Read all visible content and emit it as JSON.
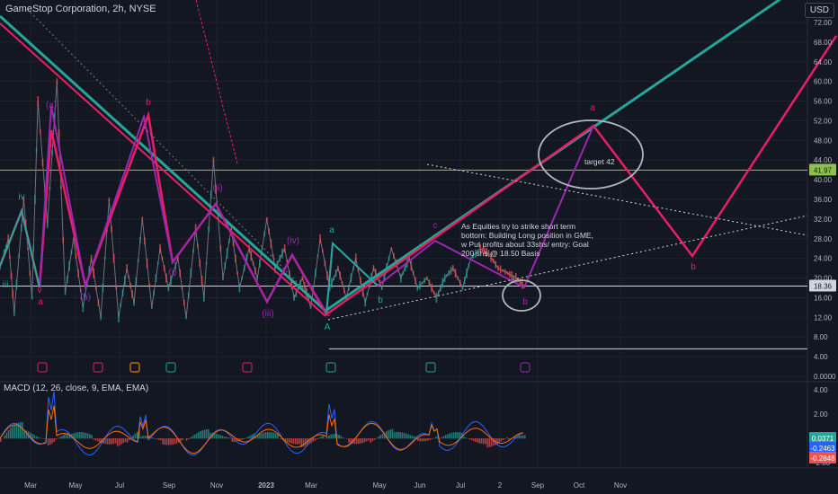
{
  "header": {
    "title": "GameStop Corporation, 2h, NYSE",
    "currency": "USD"
  },
  "annotations": {
    "note": "As Equities try to strike short term bottom: Building Long position in GME, w Put profits about 33shs/ entry: Goal 200 shs @ 18.50 Basis",
    "target": "target 42"
  },
  "price_badges": {
    "level": "41.97",
    "last": "18.36"
  },
  "wave_labels": [
    {
      "text": "iii",
      "color": "#26a69a"
    },
    {
      "text": "iv",
      "color": "#26a69a"
    },
    {
      "text": "v",
      "color": "#e91e63"
    },
    {
      "text": "a",
      "color": "#e91e63"
    },
    {
      "text": "(a)",
      "color": "#9c27b0"
    },
    {
      "text": "(b)",
      "color": "#9c27b0"
    },
    {
      "text": "b",
      "color": "#e91e63"
    },
    {
      "text": "(i)",
      "color": "#9c27b0"
    },
    {
      "text": "(ii)",
      "color": "#9c27b0"
    },
    {
      "text": "(iii)",
      "color": "#9c27b0"
    },
    {
      "text": "(iv)",
      "color": "#9c27b0"
    },
    {
      "text": "c",
      "color": "#e91e63"
    },
    {
      "text": "A",
      "color": "#26a69a"
    },
    {
      "text": "a",
      "color": "#26a69a"
    },
    {
      "text": "b",
      "color": "#26a69a"
    },
    {
      "text": "c",
      "color": "#9c27b0"
    },
    {
      "text": "b",
      "color": "#9c27b0"
    },
    {
      "text": "a",
      "color": "#e91e63"
    },
    {
      "text": "b",
      "color": "#e91e63"
    }
  ],
  "chart_data": [
    {
      "type": "line",
      "title": "GameStop Corporation, 2h, NYSE",
      "currency": "USD",
      "x_ticks": [
        "Mar",
        "May",
        "Jul",
        "Sep",
        "Nov",
        "2023",
        "Mar",
        "May",
        "Jun",
        "Jul",
        "2",
        "Sep",
        "Oct",
        "Nov"
      ],
      "y_ticks": [
        72.0,
        68.0,
        64.0,
        60.0,
        56.0,
        52.0,
        48.0,
        44.0,
        40.0,
        36.0,
        32.0,
        28.0,
        24.0,
        20.0,
        16.0,
        12.0,
        8.0,
        4.0,
        0.0
      ],
      "ylim": [
        0,
        75
      ],
      "scale": "linear",
      "horizontal_levels": [
        {
          "value": 41.97,
          "color": "#ff9800"
        },
        {
          "value": 18.36,
          "color": "#d1d4dc"
        },
        {
          "value": 5.6,
          "color": "#d1d4dc"
        }
      ],
      "series": [
        {
          "color": "#e91e63",
          "points": [
            [
              0.0,
              22
            ],
            [
              0.07,
              28
            ],
            [
              0.12,
              13
            ],
            [
              0.2,
              36
            ],
            [
              0.27,
              16
            ],
            [
              0.32,
              56
            ],
            [
              0.4,
              31
            ],
            [
              0.48,
              60
            ],
            [
              0.55,
              17
            ],
            [
              0.62,
              28
            ],
            [
              0.7,
              14
            ],
            [
              0.77,
              24
            ],
            [
              0.85,
              12
            ],
            [
              0.92,
              36
            ],
            [
              1.0,
              12
            ],
            [
              1.07,
              22
            ],
            [
              1.13,
              15
            ],
            [
              1.2,
              32
            ],
            [
              1.28,
              14
            ],
            [
              1.35,
              26
            ],
            [
              1.42,
              18
            ],
            [
              1.5,
              24
            ],
            [
              1.57,
              12
            ],
            [
              1.65,
              30
            ],
            [
              1.72,
              16
            ],
            [
              1.8,
              44
            ],
            [
              1.88,
              20
            ],
            [
              1.95,
              30
            ],
            [
              2.02,
              18
            ],
            [
              2.1,
              26
            ],
            [
              2.17,
              20
            ],
            [
              2.25,
              32
            ],
            [
              2.32,
              22
            ],
            [
              2.4,
              26
            ],
            [
              2.48,
              16
            ],
            [
              2.55,
              20
            ],
            [
              2.62,
              14
            ],
            [
              2.7,
              28
            ],
            [
              2.78,
              18
            ],
            [
              2.85,
              22
            ],
            [
              2.92,
              16
            ],
            [
              3.0,
              24
            ],
            [
              3.08,
              15
            ],
            [
              3.15,
              22
            ],
            [
              3.22,
              18
            ],
            [
              3.3,
              26
            ],
            [
              3.38,
              20
            ],
            [
              3.45,
              24
            ],
            [
              3.52,
              18
            ],
            [
              3.6,
              20
            ],
            [
              3.68,
              16
            ],
            [
              3.75,
              20
            ],
            [
              3.82,
              22
            ],
            [
              3.9,
              18
            ],
            [
              3.97,
              24
            ],
            [
              4.05,
              26
            ],
            [
              4.12,
              25
            ],
            [
              4.2,
              22
            ],
            [
              4.28,
              21
            ],
            [
              4.35,
              20
            ],
            [
              4.42,
              18.4
            ]
          ]
        }
      ]
    },
    {
      "type": "line",
      "title": "MACD (12, 26, close, 9, EMA, EMA)",
      "y_ticks": [
        4.0,
        2.0,
        0.0,
        -2.0
      ],
      "ylim": [
        -3,
        5
      ],
      "value_badges": [
        "0.0371",
        "-0.2463",
        "-0.2848"
      ]
    }
  ]
}
